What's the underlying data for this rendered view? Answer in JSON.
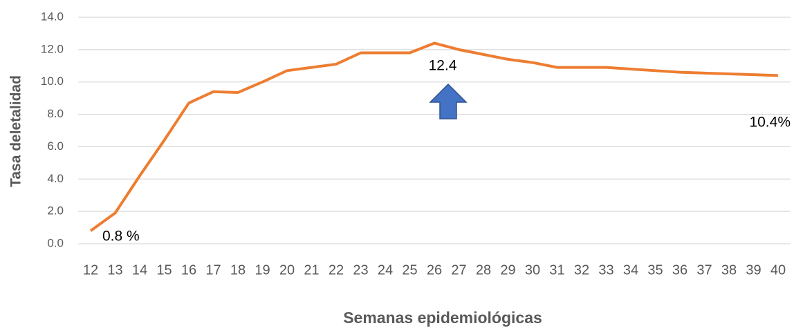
{
  "chart_data": {
    "type": "line",
    "xlabel": "Semanas epidemiológicas",
    "ylabel": "Tasa deletalidad",
    "categories": [
      "12",
      "13",
      "14",
      "15",
      "16",
      "17",
      "18",
      "19",
      "20",
      "21",
      "22",
      "23",
      "24",
      "25",
      "26",
      "27",
      "28",
      "29",
      "30",
      "31",
      "32",
      "33",
      "34",
      "35",
      "36",
      "37",
      "38",
      "39",
      "40"
    ],
    "series": [
      {
        "color": "#ed7d31",
        "values": [
          0.8,
          1.9,
          4.2,
          6.4,
          8.7,
          9.4,
          9.35,
          10.0,
          10.7,
          10.9,
          11.1,
          11.8,
          11.8,
          11.8,
          12.4,
          12.0,
          11.7,
          11.4,
          11.2,
          10.9,
          10.9,
          10.9,
          10.8,
          10.7,
          10.6,
          10.55,
          10.5,
          10.45,
          10.4
        ]
      }
    ],
    "annotations": [
      "0.8 %",
      "12.4",
      "10.4%"
    ],
    "ylim": [
      0,
      14
    ],
    "yticks": [
      {
        "value": 0,
        "label": "0.0"
      },
      {
        "value": 2,
        "label": "2.0"
      },
      {
        "value": 4,
        "label": "4.0"
      },
      {
        "value": 6,
        "label": "6.0"
      },
      {
        "value": 8,
        "label": "8.0"
      },
      {
        "value": 10,
        "label": "10.0"
      },
      {
        "value": 12,
        "label": "12.0"
      },
      {
        "value": 14,
        "label": "14.0"
      }
    ],
    "grid": true
  }
}
